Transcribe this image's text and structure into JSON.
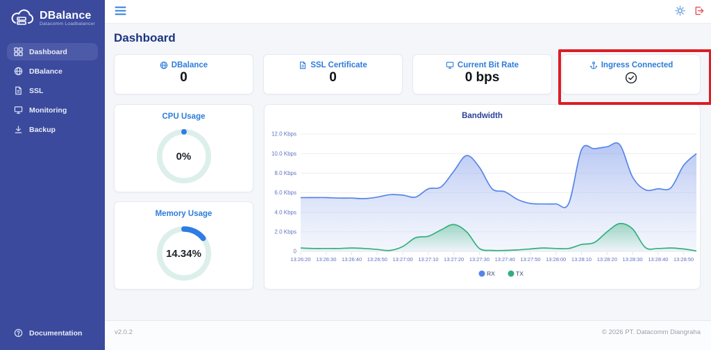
{
  "app": {
    "name": "DBalance",
    "subtitle": "Datacomm Loadbalancer",
    "logo_icon": "cloud-server-icon"
  },
  "sidebar": {
    "items": [
      {
        "label": "Dashboard",
        "icon": "grid-icon",
        "active": true
      },
      {
        "label": "DBalance",
        "icon": "globe-icon",
        "active": false
      },
      {
        "label": "SSL",
        "icon": "certificate-icon",
        "active": false
      },
      {
        "label": "Monitoring",
        "icon": "monitor-icon",
        "active": false
      },
      {
        "label": "Backup",
        "icon": "download-icon",
        "active": false
      }
    ],
    "footer_item": {
      "label": "Documentation",
      "icon": "help-icon"
    }
  },
  "header": {
    "menu_icon": "hamburger-icon",
    "actions": [
      {
        "name": "theme-toggle",
        "icon": "sun-icon",
        "color": "#5795dd"
      },
      {
        "name": "logout",
        "icon": "logout-icon",
        "color": "#e05561"
      }
    ]
  },
  "page": {
    "title": "Dashboard"
  },
  "stat_cards": [
    {
      "title": "DBalance",
      "icon": "globe-icon",
      "value": "0"
    },
    {
      "title": "SSL Certificate",
      "icon": "certificate-icon",
      "value": "0"
    },
    {
      "title": "Current Bit Rate",
      "icon": "monitor-icon",
      "value": "0 bps"
    },
    {
      "title": "Ingress Connected",
      "icon": "ingress-icon",
      "value_icon": "check-circle-icon",
      "highlighted": true
    }
  ],
  "highlight": {
    "color": "#dd1c23",
    "target": "Ingress Connected"
  },
  "gauges": [
    {
      "title": "CPU Usage",
      "value": "0%",
      "percent": 0,
      "track_color": "#ddefeb",
      "fill_color": "#2e7ce4"
    },
    {
      "title": "Memory Usage",
      "value": "14.34%",
      "percent": 14.34,
      "track_color": "#ddefeb",
      "fill_color": "#2e7ce4"
    }
  ],
  "chart_data": {
    "type": "area",
    "title": "Bandwidth",
    "xlabel": "",
    "ylabel": "",
    "unit": "Kbps",
    "ylim": [
      0,
      12
    ],
    "grid": true,
    "legend_position": "bottom",
    "y_ticks": [
      "12.0 Kbps",
      "10.0 Kbps",
      "8.0 Kbps",
      "6.0 Kbps",
      "4.0 Kbps",
      "2.0 Kbps",
      "0"
    ],
    "x_labels": [
      "13:26:20",
      "13:26:30",
      "13:26:40",
      "13:26:50",
      "13:27:00",
      "13:27:10",
      "13:27:20",
      "13:27:30",
      "13:27:40",
      "13:27:50",
      "13:28:00",
      "13:28:10",
      "13:28:20",
      "13:28:30",
      "13:28:40",
      "13:28:50"
    ],
    "points_per_label": 2,
    "series": [
      {
        "name": "RX",
        "color": "#5685e8",
        "fill_from": "rgba(124,152,233,0.55)",
        "fill_to": "rgba(214,223,247,0.28)",
        "values": [
          5.5,
          5.5,
          5.5,
          5.45,
          5.45,
          5.4,
          5.55,
          5.8,
          5.75,
          5.55,
          6.4,
          6.6,
          8.2,
          9.8,
          8.6,
          6.4,
          6.1,
          5.3,
          4.9,
          4.85,
          4.85,
          4.9,
          10.4,
          10.5,
          10.7,
          10.9,
          7.6,
          6.3,
          6.4,
          6.5,
          8.8,
          10.0
        ]
      },
      {
        "name": "TX",
        "color": "#33ae7d",
        "fill_from": "rgba(84,191,142,0.50)",
        "fill_to": "rgba(84,191,142,0.03)",
        "values": [
          0.35,
          0.3,
          0.3,
          0.3,
          0.35,
          0.3,
          0.2,
          0.1,
          0.5,
          1.4,
          1.55,
          2.2,
          2.75,
          2.0,
          0.3,
          0.1,
          0.1,
          0.15,
          0.25,
          0.35,
          0.3,
          0.3,
          0.7,
          0.9,
          2.0,
          2.85,
          2.3,
          0.4,
          0.3,
          0.35,
          0.25,
          0.05
        ]
      }
    ]
  },
  "footer": {
    "version": "v2.0.2",
    "copyright": "© 2026 PT. Datacomm Diangraha"
  },
  "colors": {
    "sidebar": "#3b4a9c",
    "accent_blue": "#2c7cd9",
    "title_navy": "#1c357f"
  }
}
